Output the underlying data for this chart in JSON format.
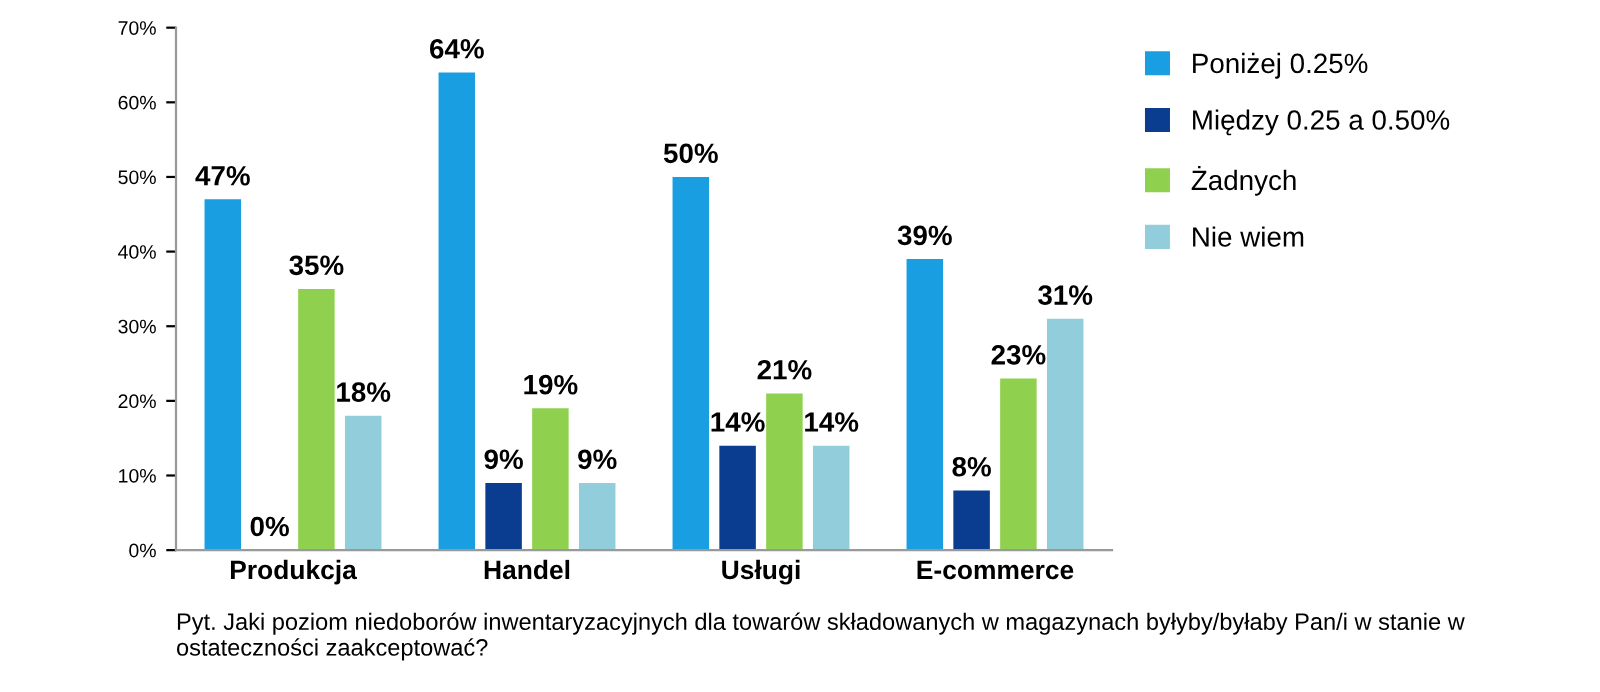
{
  "chart_data": {
    "type": "bar",
    "categories": [
      "Produkcja",
      "Handel",
      "Usługi",
      "E-commerce"
    ],
    "series": [
      {
        "name": "Poniżej 0.25%",
        "color": "#1a9ee2",
        "values": [
          47,
          64,
          50,
          39
        ],
        "value_labels": [
          "47%",
          "64%",
          "50%",
          "39%"
        ]
      },
      {
        "name": "Między 0.25 a 0.50%",
        "color": "#0a3d8f",
        "values": [
          0,
          9,
          14,
          8
        ],
        "value_labels": [
          "0%",
          "9%",
          "14%",
          "8%"
        ]
      },
      {
        "name": "Żadnych",
        "color": "#8fd14f",
        "values": [
          35,
          19,
          21,
          23
        ],
        "value_labels": [
          "35%",
          "19%",
          "21%",
          "23%"
        ]
      },
      {
        "name": "Nie wiem",
        "color": "#92cddc",
        "values": [
          18,
          9,
          14,
          31
        ],
        "value_labels": [
          "18%",
          "9%",
          "14%",
          "31%"
        ]
      }
    ],
    "ylim": [
      0,
      70
    ],
    "yticks": [
      {
        "value": 0,
        "label": "0%"
      },
      {
        "value": 10,
        "label": "10%"
      },
      {
        "value": 20,
        "label": "20%"
      },
      {
        "value": 30,
        "label": "30%"
      },
      {
        "value": 40,
        "label": "40%"
      },
      {
        "value": 50,
        "label": "50%"
      },
      {
        "value": 60,
        "label": "60%"
      },
      {
        "value": 70,
        "label": "70%"
      }
    ],
    "grid": false,
    "legend": "right",
    "annotations": [
      "Pyt. Jaki poziom niedoborów inwentaryzacyjnych dla towarów składowanych w magazynach byłyby/byłaby Pan/i w stanie w ostateczności zaakceptować?"
    ]
  }
}
